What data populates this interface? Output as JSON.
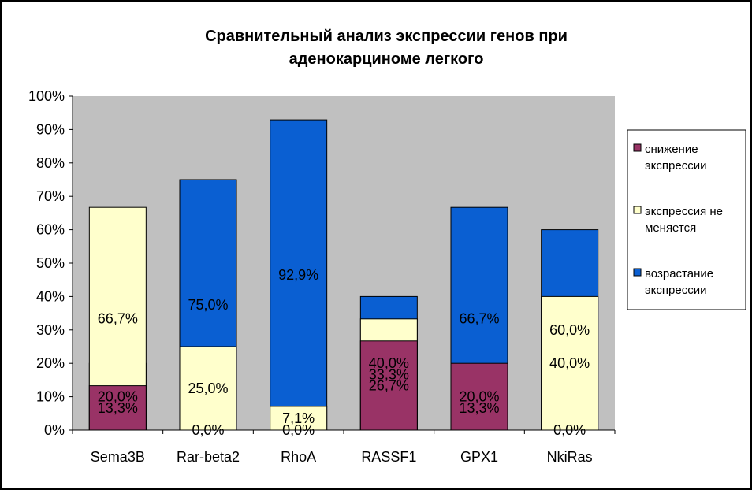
{
  "chart_data": {
    "type": "bar",
    "stacked": "percent",
    "title": "Сравнительный анализ экспрессии генов при аденокарциноме легкого",
    "title_lines": [
      "Сравнительный анализ экспрессии генов при",
      "аденокарциноме легкого"
    ],
    "categories": [
      "Sema3B",
      "Rar-beta2",
      "RhoA",
      "RASSF1",
      "GPX1",
      "NkiRas"
    ],
    "yticks": [
      "0%",
      "10%",
      "20%",
      "30%",
      "40%",
      "50%",
      "60%",
      "70%",
      "80%",
      "90%",
      "100%"
    ],
    "ylim": [
      0,
      100
    ],
    "grid": false,
    "plot_background": "#c0c0c0",
    "legend_position": "right",
    "series": [
      {
        "name": "возрастание экспрессии",
        "name_lines": [
          "возрастание",
          "экспрессии"
        ],
        "color": "#0a5fd2",
        "values": [
          20.0,
          75.0,
          92.9,
          40.0,
          66.7,
          60.0
        ],
        "labels": [
          "20,0%",
          "75,0%",
          "92,9%",
          "40,0%",
          "66,7%",
          "60,0%"
        ]
      },
      {
        "name": "экспрессия не меняется",
        "name_lines": [
          "экспрессия не",
          "меняется"
        ],
        "color": "#ffffcc",
        "values": [
          66.7,
          25.0,
          7.1,
          33.3,
          13.3,
          40.0
        ],
        "labels": [
          "66,7%",
          "25,0%",
          "7,1%",
          "33,3%",
          "13,3%",
          "40,0%"
        ]
      },
      {
        "name": "снижение экспрессии",
        "name_lines": [
          "снижение",
          "экспрессии"
        ],
        "color": "#993366",
        "values": [
          13.3,
          0.0,
          0.0,
          26.7,
          20.0,
          0.0
        ],
        "labels": [
          "13,3%",
          "0,0%",
          "0,0%",
          "26,7%",
          "20,0%",
          "0,0%"
        ]
      }
    ],
    "legend_order": [
      2,
      1,
      0
    ]
  }
}
